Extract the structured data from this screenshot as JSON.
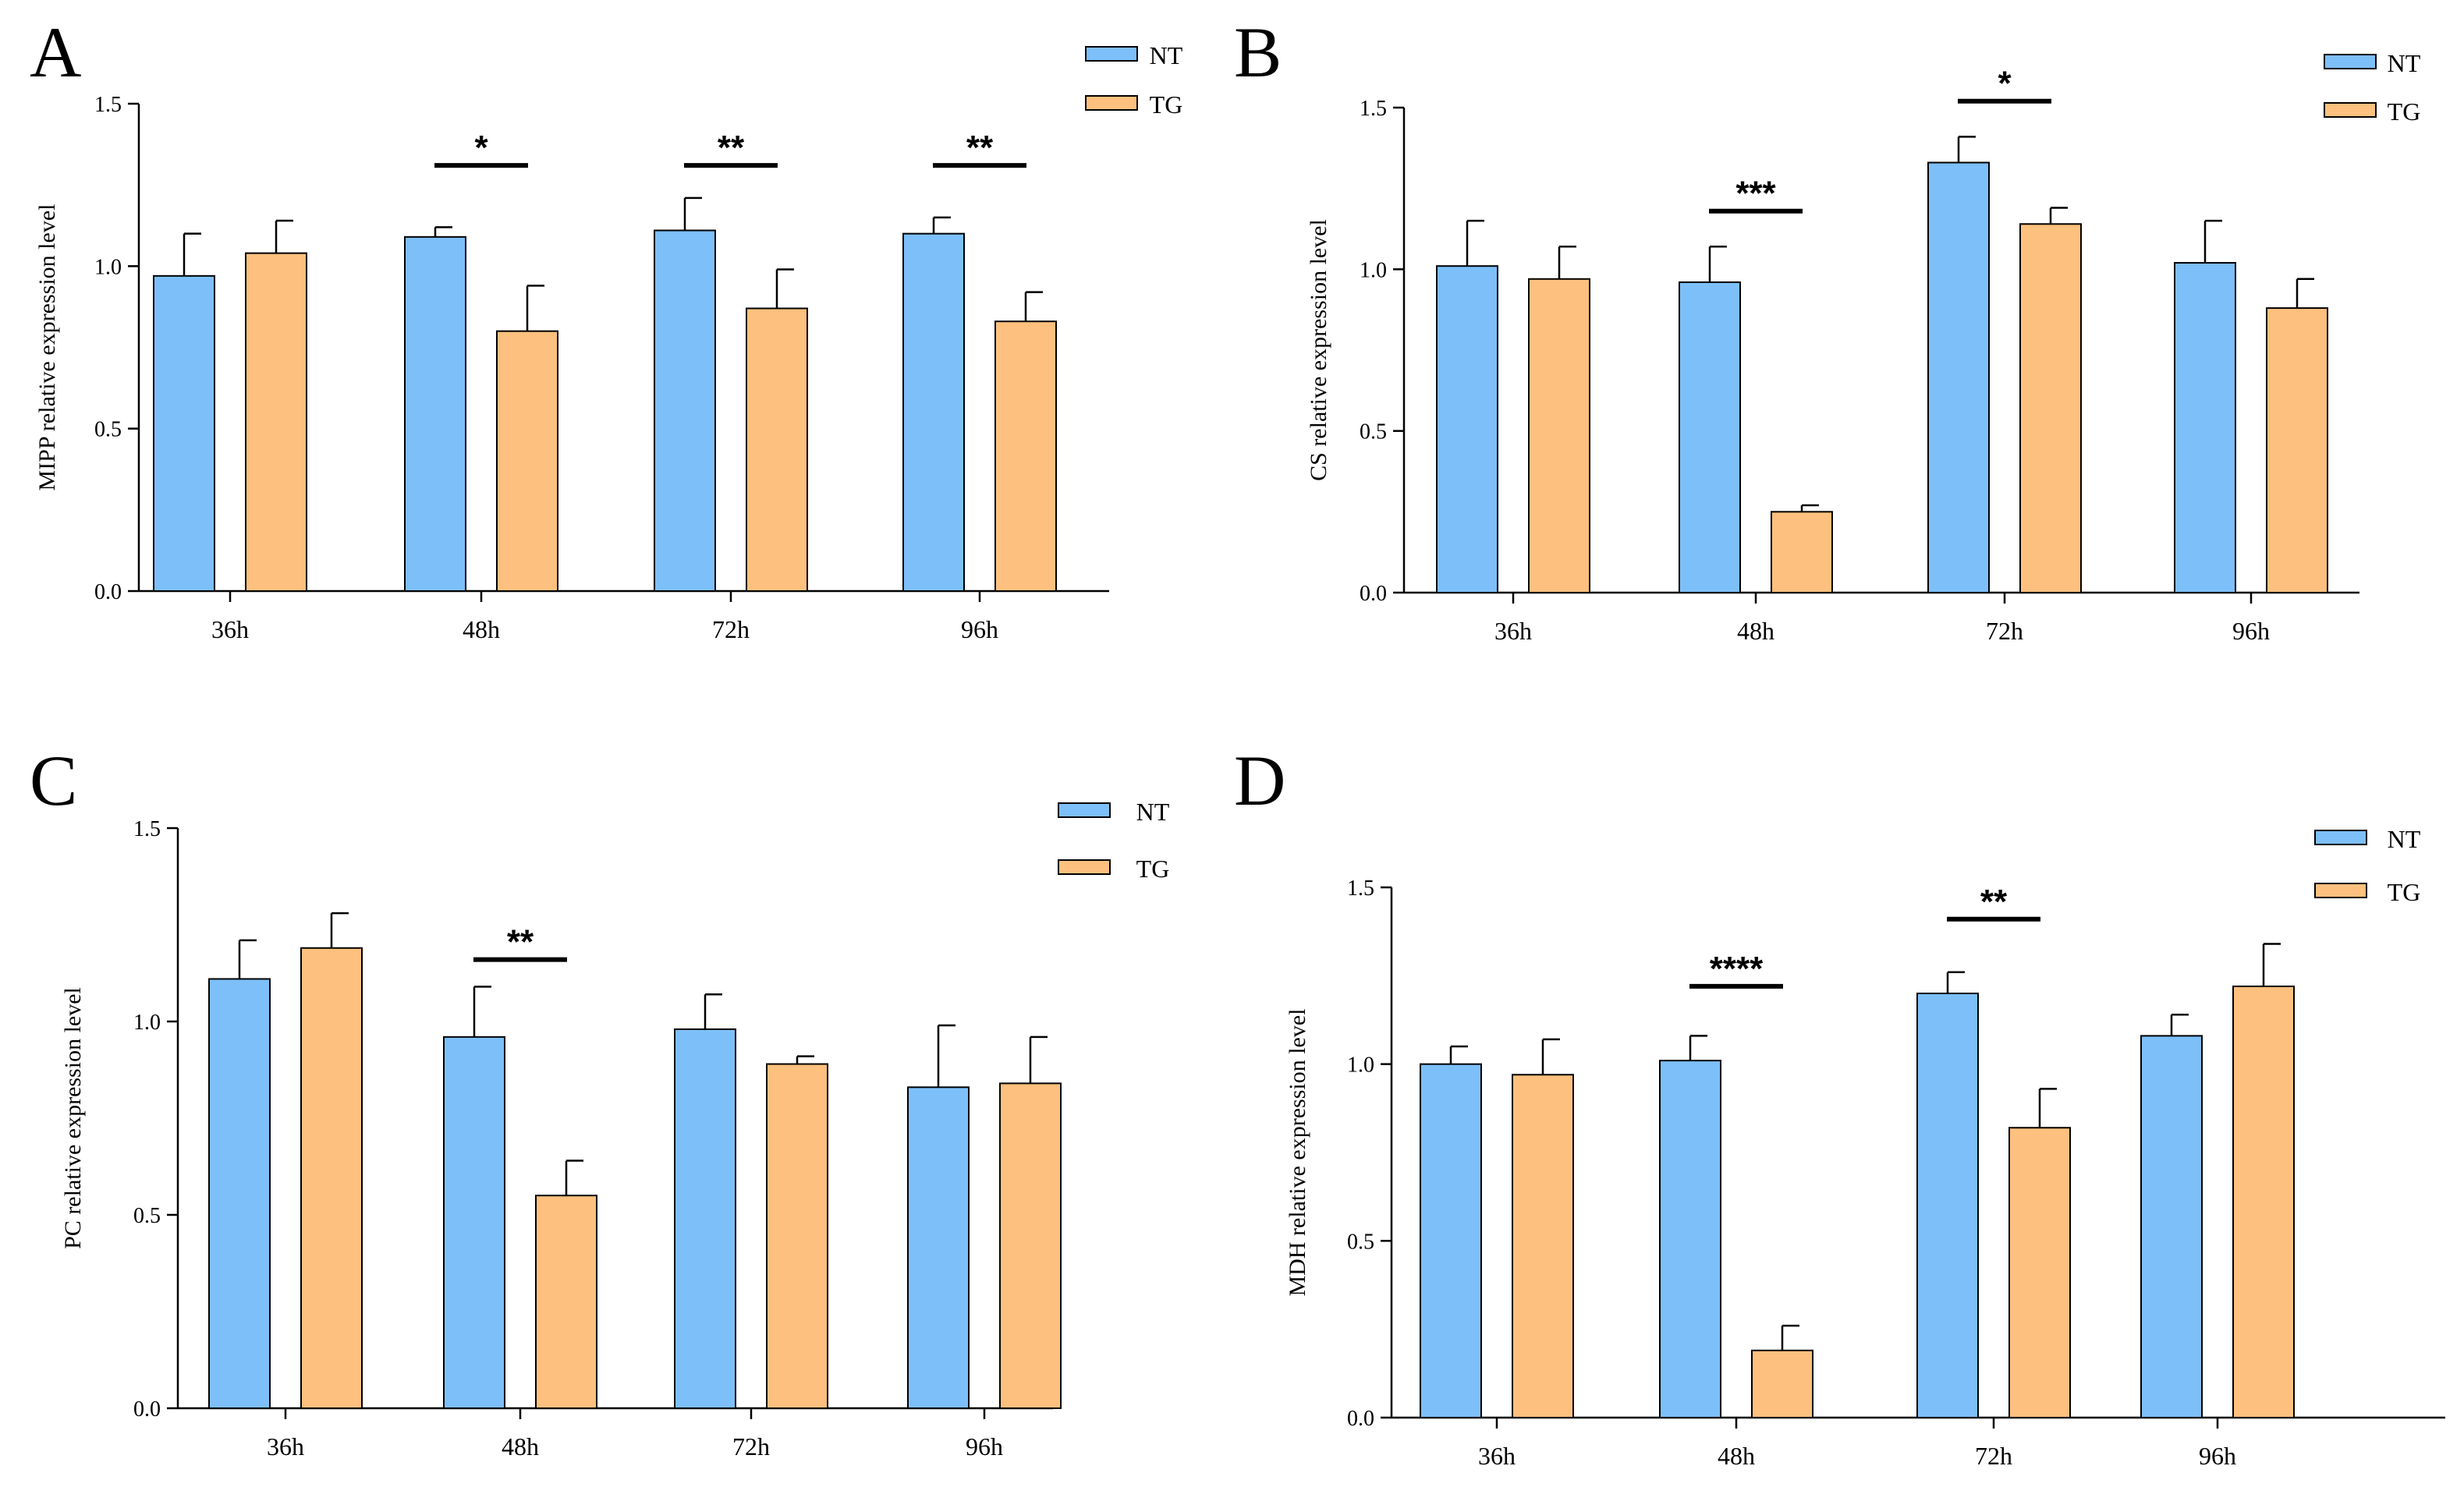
{
  "figure": {
    "panels_order": [
      "A",
      "B",
      "C",
      "D"
    ]
  },
  "colors": {
    "NT": "#7dbff9",
    "TG": "#fdc07e",
    "stroke": "#000000"
  },
  "chart_data": [
    {
      "panel": "A",
      "type": "bar",
      "ylabel": "MIPP relative expression level",
      "ylim": [
        0,
        1.5
      ],
      "yticks": [
        "0.0",
        "0.5",
        "1.0",
        "1.5"
      ],
      "yticks_values": [
        0,
        0.5,
        1.0,
        1.5
      ],
      "categories": [
        "36h",
        "48h",
        "72h",
        "96h"
      ],
      "legend": [
        "NT",
        "TG"
      ],
      "series": [
        {
          "name": "NT",
          "values": [
            0.97,
            1.09,
            1.11,
            1.1
          ],
          "errors": [
            0.13,
            0.03,
            0.1,
            0.05
          ]
        },
        {
          "name": "TG",
          "values": [
            1.04,
            0.8,
            0.87,
            0.83
          ],
          "errors": [
            0.1,
            0.14,
            0.12,
            0.09
          ]
        }
      ],
      "significance": [
        {
          "category": 1,
          "label": "*",
          "y": 1.31
        },
        {
          "category": 2,
          "label": "**",
          "y": 1.31
        },
        {
          "category": 3,
          "label": "**",
          "y": 1.31
        }
      ]
    },
    {
      "panel": "B",
      "type": "bar",
      "ylabel": "CS relative expression level",
      "ylim": [
        0,
        1.5
      ],
      "yticks": [
        "0.0",
        "0.5",
        "1.0",
        "1.5"
      ],
      "yticks_values": [
        0,
        0.5,
        1.0,
        1.5
      ],
      "categories": [
        "36h",
        "48h",
        "72h",
        "96h"
      ],
      "legend": [
        "NT",
        "TG"
      ],
      "series": [
        {
          "name": "NT",
          "values": [
            1.01,
            0.96,
            1.33,
            1.02
          ],
          "errors": [
            0.14,
            0.11,
            0.08,
            0.13
          ]
        },
        {
          "name": "TG",
          "values": [
            0.97,
            0.25,
            1.14,
            0.88
          ],
          "errors": [
            0.1,
            0.02,
            0.05,
            0.09
          ]
        }
      ],
      "significance": [
        {
          "category": 1,
          "label": "***",
          "y": 1.18
        },
        {
          "category": 2,
          "label": "*",
          "y": 1.52
        }
      ]
    },
    {
      "panel": "C",
      "type": "bar",
      "ylabel": "PC relative expression level",
      "ylim": [
        0,
        1.5
      ],
      "yticks": [
        "0.0",
        "0.5",
        "1.0",
        "1.5"
      ],
      "yticks_values": [
        0,
        0.5,
        1.0,
        1.5
      ],
      "categories": [
        "36h",
        "48h",
        "72h",
        "96h"
      ],
      "legend": [
        "NT",
        "TG"
      ],
      "series": [
        {
          "name": "NT",
          "values": [
            1.11,
            0.96,
            0.98,
            0.83
          ],
          "errors": [
            0.1,
            0.13,
            0.09,
            0.16
          ]
        },
        {
          "name": "TG",
          "values": [
            1.19,
            0.55,
            0.89,
            0.84
          ],
          "errors": [
            0.09,
            0.09,
            0.02,
            0.12
          ]
        }
      ],
      "significance": [
        {
          "category": 1,
          "label": "**",
          "y": 1.16
        }
      ]
    },
    {
      "panel": "D",
      "type": "bar",
      "ylabel": "MDH relative expression level",
      "ylim": [
        0,
        1.5
      ],
      "yticks": [
        "0.0",
        "0.5",
        "1.0",
        "1.5"
      ],
      "yticks_values": [
        0,
        0.5,
        1.0,
        1.5
      ],
      "categories": [
        "36h",
        "48h",
        "72h",
        "96h"
      ],
      "legend": [
        "NT",
        "TG"
      ],
      "series": [
        {
          "name": "NT",
          "values": [
            1.0,
            1.01,
            1.2,
            1.08
          ],
          "errors": [
            0.05,
            0.07,
            0.06,
            0.06
          ]
        },
        {
          "name": "TG",
          "values": [
            0.97,
            0.19,
            0.82,
            1.22
          ],
          "errors": [
            0.1,
            0.07,
            0.11,
            0.12
          ]
        }
      ],
      "significance": [
        {
          "category": 1,
          "label": "****",
          "y": 1.22
        },
        {
          "category": 2,
          "label": "**",
          "y": 1.41
        }
      ]
    }
  ]
}
